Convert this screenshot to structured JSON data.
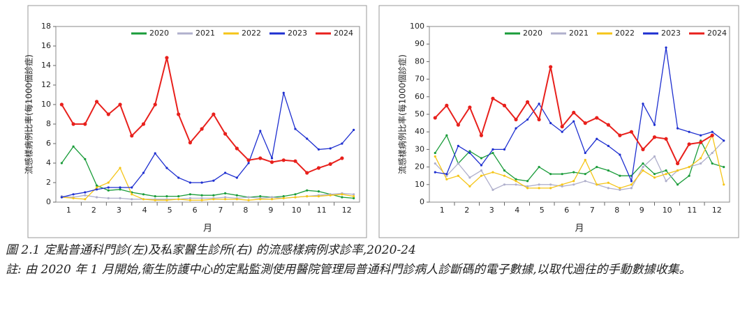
{
  "chart_data": [
    {
      "type": "line",
      "ylabel": "流感樣病例比率(每1000個診症)",
      "xlabel": "月",
      "x": [
        1,
        3,
        5,
        7,
        9,
        11,
        13,
        15,
        17,
        19,
        21,
        23,
        25,
        27,
        29,
        31,
        33,
        35,
        37,
        39,
        41,
        43,
        45,
        47,
        49,
        51
      ],
      "xlim": [
        0,
        52
      ],
      "xticks": [
        {
          "value": 2.2,
          "label": "1"
        },
        {
          "value": 6.5,
          "label": "2"
        },
        {
          "value": 10.8,
          "label": "3"
        },
        {
          "value": 15.2,
          "label": "4"
        },
        {
          "value": 19.5,
          "label": "5"
        },
        {
          "value": 23.8,
          "label": "6"
        },
        {
          "value": 28.2,
          "label": "7"
        },
        {
          "value": 32.5,
          "label": "8"
        },
        {
          "value": 36.8,
          "label": "9"
        },
        {
          "value": 41.2,
          "label": "10"
        },
        {
          "value": 45.5,
          "label": "11"
        },
        {
          "value": 49.8,
          "label": "12"
        }
      ],
      "ylim": [
        0,
        18
      ],
      "yticks": [
        0,
        2,
        4,
        6,
        8,
        10,
        12,
        14,
        16,
        18
      ],
      "series": [
        {
          "name": "2020",
          "color": "#1a9c3a",
          "values": [
            4,
            5.7,
            4.4,
            1.7,
            1.2,
            1.3,
            1,
            0.8,
            0.6,
            0.6,
            0.6,
            0.8,
            0.7,
            0.7,
            0.9,
            0.7,
            0.5,
            0.6,
            0.5,
            0.6,
            0.8,
            1.2,
            1.1,
            0.8,
            0.5,
            0.4
          ]
        },
        {
          "name": "2021",
          "color": "#b0b0cc",
          "values": [
            0.6,
            0.5,
            0.7,
            0.5,
            0.4,
            0.4,
            0.3,
            0.3,
            0.3,
            0.3,
            0.3,
            0.4,
            0.4,
            0.4,
            0.5,
            0.4,
            0.5,
            0.4,
            0.5,
            0.4,
            0.5,
            0.6,
            0.7,
            0.8,
            0.9,
            0.8
          ]
        },
        {
          "name": "2022",
          "color": "#f5c518",
          "values": [
            0.5,
            0.4,
            0.3,
            1.5,
            2,
            3.5,
            0.8,
            0.3,
            0.2,
            0.2,
            0.3,
            0.2,
            0.2,
            0.3,
            0.3,
            0.3,
            0.2,
            0.3,
            0.3,
            0.4,
            0.5,
            0.6,
            0.6,
            0.7,
            0.8,
            0.6
          ]
        },
        {
          "name": "2023",
          "color": "#1e2fd0",
          "values": [
            0.5,
            0.8,
            1,
            1.3,
            1.5,
            1.5,
            1.5,
            3,
            5,
            3.5,
            2.5,
            2,
            2,
            2.2,
            3,
            2.5,
            4,
            7.3,
            4.5,
            11.2,
            7.5,
            6.5,
            5.4,
            5.5,
            6,
            7.4
          ]
        },
        {
          "name": "2024",
          "color": "#e8201c",
          "values": [
            10,
            8,
            8,
            10.3,
            9,
            10,
            6.8,
            8,
            10,
            14.8,
            9,
            6.1,
            7.5,
            9,
            7,
            5.5,
            4.3,
            4.5,
            4.1,
            4.3,
            4.2,
            3,
            3.5,
            3.9,
            4.5,
            null
          ]
        }
      ]
    },
    {
      "type": "line",
      "ylabel": "流感樣病例比率(每1000個診症)",
      "xlabel": "月",
      "x": [
        1,
        3,
        5,
        7,
        9,
        11,
        13,
        15,
        17,
        19,
        21,
        23,
        25,
        27,
        29,
        31,
        33,
        35,
        37,
        39,
        41,
        43,
        45,
        47,
        49,
        51
      ],
      "xlim": [
        0,
        52
      ],
      "xticks": [
        {
          "value": 2.2,
          "label": "1"
        },
        {
          "value": 6.5,
          "label": "2"
        },
        {
          "value": 10.8,
          "label": "3"
        },
        {
          "value": 15.2,
          "label": "4"
        },
        {
          "value": 19.5,
          "label": "5"
        },
        {
          "value": 23.8,
          "label": "6"
        },
        {
          "value": 28.2,
          "label": "7"
        },
        {
          "value": 32.5,
          "label": "8"
        },
        {
          "value": 36.8,
          "label": "9"
        },
        {
          "value": 41.2,
          "label": "10"
        },
        {
          "value": 45.5,
          "label": "11"
        },
        {
          "value": 49.8,
          "label": "12"
        }
      ],
      "ylim": [
        0,
        100
      ],
      "yticks": [
        0,
        10,
        20,
        30,
        40,
        50,
        60,
        70,
        80,
        90,
        100
      ],
      "series": [
        {
          "name": "2020",
          "color": "#1a9c3a",
          "values": [
            28,
            38,
            22,
            29,
            25,
            28,
            18,
            13,
            12,
            20,
            16,
            16,
            17,
            16,
            20,
            18,
            15,
            15,
            22,
            16,
            18,
            10,
            15,
            35,
            22,
            20
          ]
        },
        {
          "name": "2021",
          "color": "#b0b0cc",
          "values": [
            22,
            15,
            22,
            14,
            18,
            7,
            10,
            10,
            9,
            10,
            10,
            9,
            10,
            12,
            10,
            8,
            7,
            8,
            20,
            26,
            12,
            18,
            20,
            22,
            28,
            35
          ]
        },
        {
          "name": "2022",
          "color": "#f5c518",
          "values": [
            26,
            13,
            15,
            9,
            15,
            17,
            15,
            12,
            8,
            8,
            8,
            10,
            12,
            24,
            10,
            11,
            8,
            10,
            18,
            14,
            16,
            18,
            20,
            25,
            38,
            10
          ]
        },
        {
          "name": "2023",
          "color": "#1e2fd0",
          "values": [
            17,
            16,
            32,
            28,
            21,
            30,
            30,
            42,
            47,
            56,
            45,
            40,
            46,
            28,
            36,
            32,
            27,
            12,
            56,
            44,
            88,
            42,
            40,
            38,
            40,
            35
          ]
        },
        {
          "name": "2024",
          "color": "#e8201c",
          "values": [
            48,
            55,
            44,
            54,
            38,
            59,
            55,
            47,
            57,
            47,
            77,
            43,
            51,
            45,
            48,
            44,
            38,
            40,
            30,
            37,
            36,
            22,
            33,
            34,
            38,
            null
          ]
        }
      ]
    }
  ],
  "caption": "圖 2.1 定點普通科門診(左)及私家醫生診所(右) 的流感樣病例求診率,2020-24",
  "note": "註: 由 2020 年 1 月開始,衞生防護中心的定點監測使用醫院管理局普通科門診病人診斷碼的電子數據,以取代過往的手動數據收集。"
}
